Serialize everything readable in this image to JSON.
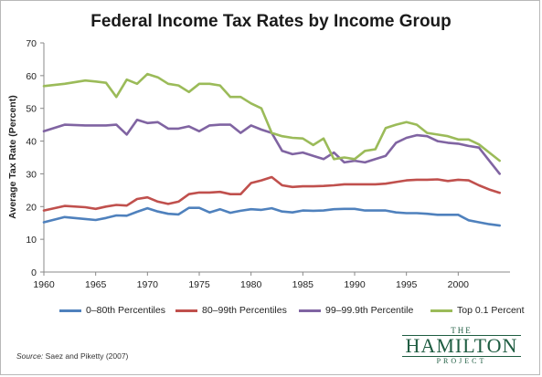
{
  "chart_data": {
    "type": "line",
    "title": "Federal Income Tax Rates by Income Group",
    "ylabel": "Average Tax Rate (Percent)",
    "xlabel": "",
    "xlim": [
      1960,
      2005
    ],
    "ylim": [
      0,
      70
    ],
    "x_ticks": [
      1960,
      1965,
      1970,
      1975,
      1980,
      1985,
      1990,
      1995,
      2000
    ],
    "y_ticks": [
      0,
      10,
      20,
      30,
      40,
      50,
      60,
      70
    ],
    "grid": false,
    "legend_position": "bottom",
    "x": [
      1960,
      1962,
      1964,
      1965,
      1966,
      1967,
      1968,
      1969,
      1970,
      1971,
      1972,
      1973,
      1974,
      1975,
      1976,
      1977,
      1978,
      1979,
      1980,
      1981,
      1982,
      1983,
      1984,
      1985,
      1986,
      1987,
      1988,
      1989,
      1990,
      1991,
      1992,
      1993,
      1994,
      1995,
      1996,
      1997,
      1998,
      1999,
      2000,
      2001,
      2002,
      2003,
      2004
    ],
    "series": [
      {
        "name": "0–80th Percentiles",
        "color": "#4f81bd",
        "values": [
          15.2,
          16.8,
          16.2,
          15.9,
          16.5,
          17.3,
          17.2,
          18.4,
          19.5,
          18.5,
          17.8,
          17.6,
          19.6,
          19.6,
          18.2,
          19.2,
          18.1,
          18.7,
          19.2,
          19.0,
          19.5,
          18.5,
          18.2,
          18.8,
          18.7,
          18.8,
          19.2,
          19.3,
          19.3,
          18.8,
          18.8,
          18.8,
          18.2,
          18.0,
          18.0,
          17.8,
          17.5,
          17.5,
          17.5,
          15.8,
          15.2,
          14.6,
          14.2
        ]
      },
      {
        "name": "80–99th Percentiles",
        "color": "#c0504d",
        "values": [
          18.8,
          20.2,
          19.8,
          19.3,
          20.0,
          20.5,
          20.3,
          22.3,
          22.8,
          21.5,
          20.8,
          21.5,
          23.8,
          24.3,
          24.3,
          24.5,
          23.8,
          23.8,
          27.2,
          28.0,
          29.0,
          26.5,
          26.0,
          26.2,
          26.2,
          26.3,
          26.5,
          26.8,
          26.8,
          26.8,
          26.8,
          27.0,
          27.5,
          28.0,
          28.2,
          28.2,
          28.3,
          27.8,
          28.2,
          28.0,
          26.5,
          25.2,
          24.2
        ]
      },
      {
        "name": "99–99.9th Percentile",
        "color": "#8064a2",
        "values": [
          43.0,
          45.0,
          44.8,
          44.8,
          44.8,
          45.0,
          42.0,
          46.5,
          45.5,
          45.8,
          43.8,
          43.8,
          44.5,
          43.0,
          44.8,
          45.0,
          45.0,
          42.5,
          44.8,
          43.5,
          42.5,
          37.0,
          36.0,
          36.5,
          35.5,
          34.5,
          36.5,
          33.5,
          34.0,
          33.5,
          34.5,
          35.5,
          39.5,
          41.0,
          41.8,
          41.5,
          40.0,
          39.5,
          39.2,
          38.5,
          38.0,
          34.0,
          30.0
        ]
      },
      {
        "name": "Top 0.1 Percent",
        "color": "#9bbb59",
        "values": [
          56.8,
          57.5,
          58.5,
          58.2,
          57.8,
          53.5,
          58.8,
          57.5,
          60.5,
          59.5,
          57.5,
          57.0,
          55.0,
          57.5,
          57.5,
          57.0,
          53.5,
          53.5,
          51.5,
          50.0,
          42.5,
          41.5,
          41.0,
          40.8,
          38.8,
          40.8,
          34.5,
          35.0,
          34.5,
          37.0,
          37.5,
          44.0,
          45.0,
          45.8,
          45.0,
          42.5,
          42.0,
          41.5,
          40.5,
          40.5,
          39.0,
          36.5,
          34.0
        ]
      }
    ]
  },
  "source": {
    "label": "Source:",
    "text": "Saez and Piketty (2007)"
  },
  "logo": {
    "the": "THE",
    "name": "HAMILTON",
    "project": "PROJECT"
  }
}
